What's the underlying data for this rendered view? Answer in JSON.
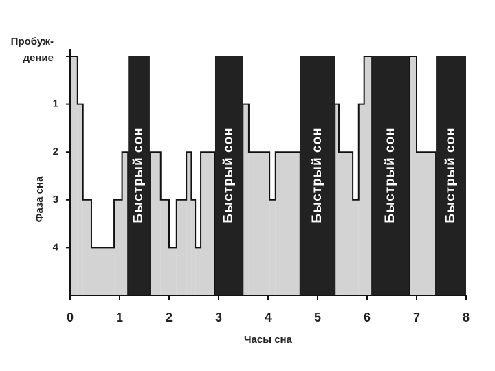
{
  "chart_data": {
    "type": "hypnogram",
    "x_label": "Часы сна",
    "y_label": "Фаза сна",
    "x": [
      0,
      0.15,
      0.26,
      0.43,
      0.89,
      1.05,
      1.17,
      1.61,
      1.83,
      2.0,
      2.15,
      2.35,
      2.45,
      2.53,
      2.64,
      2.93,
      3.49,
      3.61,
      4.03,
      4.15,
      4.65,
      5.35,
      5.43,
      5.71,
      5.83,
      5.94,
      6.1,
      6.85,
      7.0,
      7.39
    ],
    "values": [
      0,
      1,
      3,
      4,
      3,
      2,
      null,
      2,
      3,
      4,
      3,
      2,
      3,
      4,
      2,
      null,
      1,
      2,
      3,
      2,
      null,
      1,
      2,
      3,
      1,
      0,
      null,
      0,
      2,
      null
    ],
    "color": "#d3d3d3",
    "rem_label": "Быстрый сон",
    "rem_color": "#222222",
    "rem_periods": [
      [
        1.17,
        1.61
      ],
      [
        2.93,
        3.49
      ],
      [
        4.65,
        5.35
      ],
      [
        6.1,
        6.85
      ],
      [
        7.39,
        8.0
      ]
    ],
    "xlim": [
      0,
      8
    ],
    "xticks": [
      0,
      1,
      2,
      3,
      4,
      5,
      6,
      7,
      8
    ],
    "ylim": [
      0,
      5
    ],
    "y_inverted": true,
    "yticks": [
      {
        "value": 0,
        "label": "Пробуж-\nдение"
      },
      1,
      2,
      3,
      4
    ]
  }
}
